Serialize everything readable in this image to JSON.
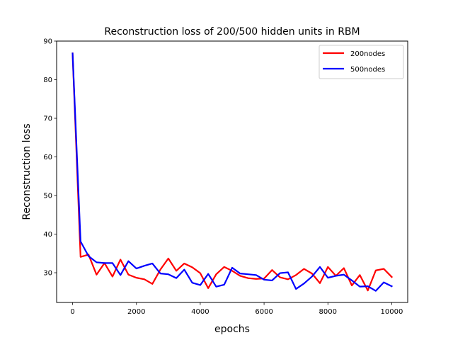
{
  "chart_data": {
    "type": "line",
    "title": "Reconstruction loss of 200/500 hidden units in RBM",
    "xlabel": "epochs",
    "ylabel": "Reconstruction loss",
    "xlim": [
      -500,
      10500
    ],
    "ylim": [
      22.3,
      90
    ],
    "xticks": [
      0,
      2000,
      4000,
      6000,
      8000,
      10000
    ],
    "yticks": [
      30,
      40,
      50,
      60,
      70,
      80,
      90
    ],
    "legend_position": "top-right",
    "grid": false,
    "x": [
      0,
      250,
      500,
      750,
      1000,
      1250,
      1500,
      1750,
      2000,
      2250,
      2500,
      2750,
      3000,
      3250,
      3500,
      3750,
      4000,
      4250,
      4500,
      4750,
      5000,
      5250,
      5500,
      5750,
      6000,
      6250,
      6500,
      6750,
      7000,
      7250,
      7500,
      7750,
      8000,
      8250,
      8500,
      8750,
      9000,
      9250,
      9500,
      9750,
      10000
    ],
    "series": [
      {
        "name": "200nodes",
        "color": "#ff0000",
        "values": [
          86.8,
          34.1,
          34.7,
          29.5,
          32.5,
          29.0,
          33.4,
          29.5,
          28.7,
          28.3,
          27.1,
          30.8,
          33.7,
          30.5,
          32.4,
          31.4,
          29.9,
          26.0,
          29.6,
          31.5,
          30.5,
          29.2,
          28.6,
          28.4,
          28.5,
          30.7,
          28.8,
          28.3,
          29.4,
          31.0,
          29.8,
          27.3,
          31.5,
          29.2,
          31.2,
          26.7,
          29.4,
          25.4,
          30.6,
          31.0,
          28.9
        ]
      },
      {
        "name": "500nodes",
        "color": "#0000ff",
        "values": [
          86.8,
          38.1,
          34.3,
          32.7,
          32.5,
          32.5,
          29.4,
          33.0,
          31.1,
          31.8,
          32.4,
          29.8,
          29.6,
          28.6,
          30.8,
          27.4,
          26.8,
          29.7,
          26.4,
          26.9,
          31.3,
          29.8,
          29.6,
          29.4,
          28.2,
          28.0,
          29.9,
          30.1,
          25.8,
          27.2,
          29.0,
          31.5,
          28.7,
          29.2,
          29.5,
          28.0,
          26.4,
          26.5,
          25.3,
          27.5,
          26.5
        ]
      }
    ]
  }
}
